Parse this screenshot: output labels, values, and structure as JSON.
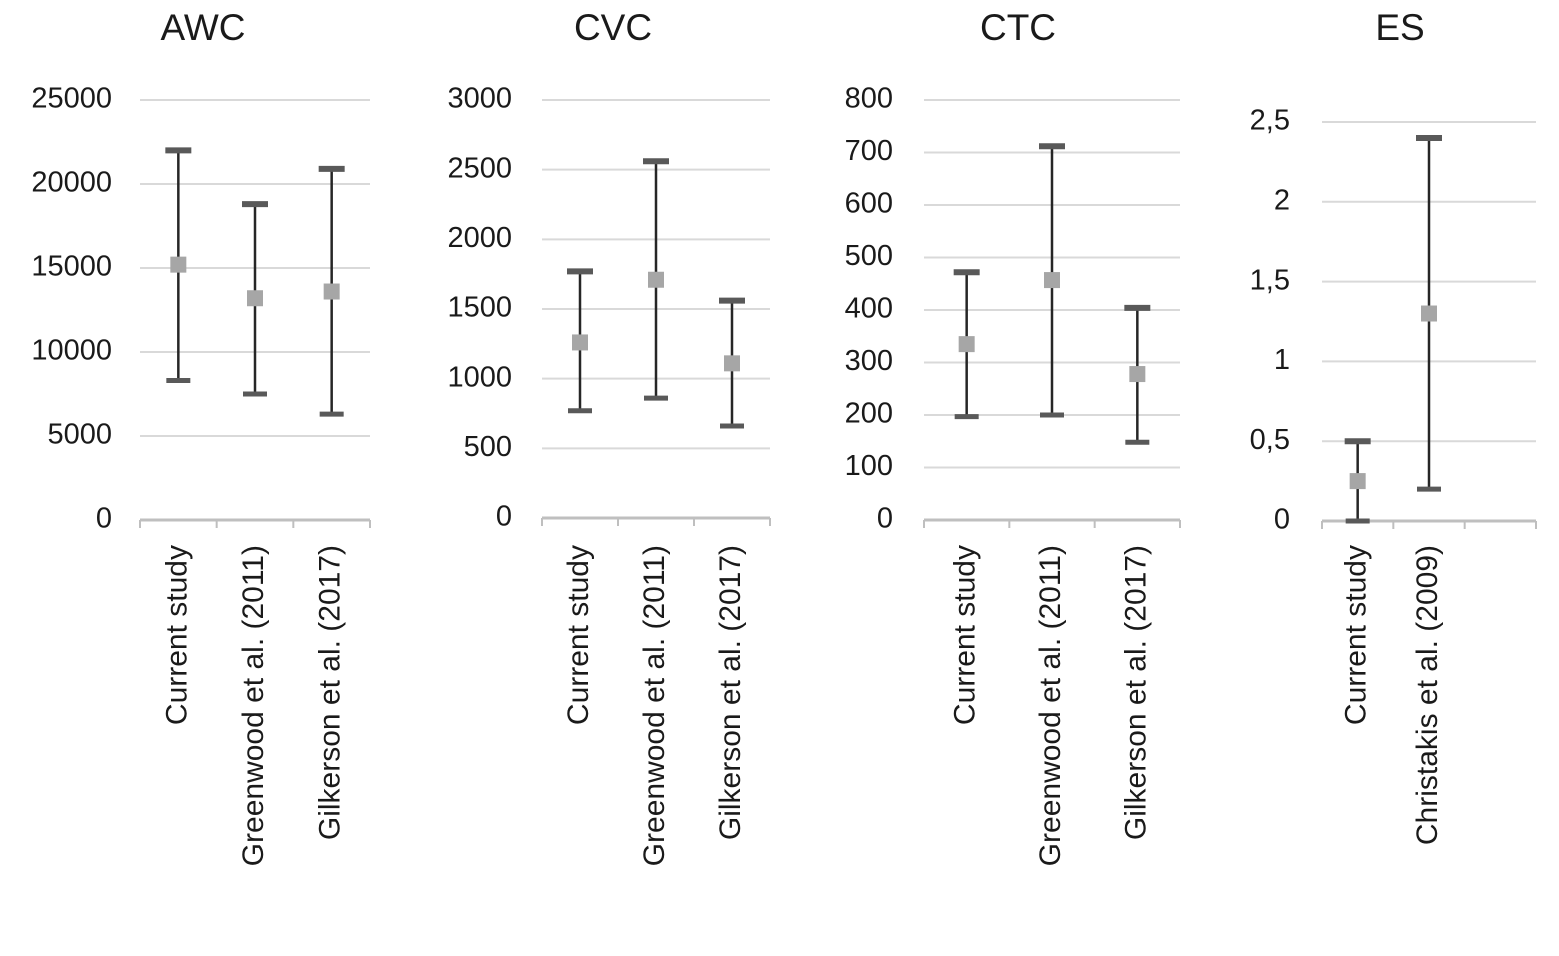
{
  "chart_data": [
    {
      "type": "errorbar",
      "title": "AWC",
      "categories": [
        "Current study",
        "Greenwood et al. (2011)",
        "Gilkerson et al. (2017)"
      ],
      "values": [
        15200,
        13200,
        13600
      ],
      "low": [
        8300,
        7500,
        6300
      ],
      "high": [
        22000,
        18800,
        20900
      ],
      "ylim": [
        0,
        25000
      ],
      "yticks": [
        0,
        5000,
        10000,
        15000,
        20000,
        25000
      ],
      "grid": true,
      "color": "#a6a6a6",
      "bar_color": "#595959"
    },
    {
      "type": "errorbar",
      "title": "CVC",
      "categories": [
        "Current study",
        "Greenwood et al. (2011)",
        "Gilkerson et al. (2017)"
      ],
      "values": [
        1260,
        1710,
        1110
      ],
      "low": [
        770,
        860,
        660
      ],
      "high": [
        1770,
        2560,
        1560
      ],
      "ylim": [
        0,
        3000
      ],
      "yticks": [
        0,
        500,
        1000,
        1500,
        2000,
        2500,
        3000
      ],
      "grid": true,
      "color": "#a6a6a6",
      "bar_color": "#595959"
    },
    {
      "type": "errorbar",
      "title": "CTC",
      "categories": [
        "Current study",
        "Greenwood et al. (2011)",
        "Gilkerson et al. (2017)"
      ],
      "values": [
        335,
        457,
        278
      ],
      "low": [
        197,
        200,
        148
      ],
      "high": [
        472,
        712,
        404
      ],
      "ylim": [
        0,
        800
      ],
      "yticks": [
        0,
        100,
        200,
        300,
        400,
        500,
        600,
        700,
        800
      ],
      "grid": true,
      "color": "#a6a6a6",
      "bar_color": "#595959"
    },
    {
      "type": "errorbar",
      "title": "ES",
      "categories": [
        "Current study",
        "Christakis et al. (2009)",
        null
      ],
      "values": [
        0.25,
        1.3,
        null
      ],
      "low": [
        0,
        0.2,
        null
      ],
      "high": [
        0.5,
        2.4,
        null
      ],
      "ylim": [
        0,
        2.5
      ],
      "yticks": [
        0,
        {
          "value": 0.5,
          "label": "0,5"
        },
        1,
        {
          "value": 1.5,
          "label": "1,5"
        },
        2,
        {
          "value": 2.5,
          "label": "2,5"
        }
      ],
      "grid": true,
      "color": "#a6a6a6",
      "bar_color": "#595959"
    }
  ]
}
